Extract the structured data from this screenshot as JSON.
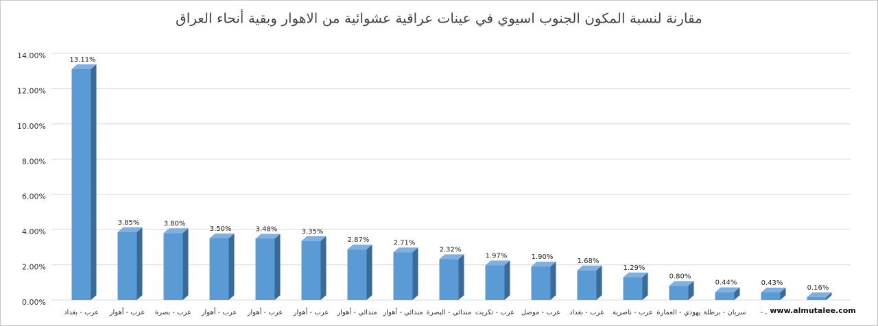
{
  "chart_data": {
    "type": "bar3d",
    "title": "مقارنة لنسبة المكون الجنوب اسيوي في عينات عراقية عشوائية من الاهوار وبقية أنحاء العراق",
    "categories": [
      "عرب - بغداد",
      "عرب - أهوار",
      "عرب - بصرة",
      "عرب - أهوار",
      "عرب - أهوار",
      "عرب - أهوار",
      "مندائي - أهوار",
      "مندائي - أهوار",
      "مندائي - البصرة",
      "عرب - تكريت",
      "عرب - موصل",
      "عرب - بغداد",
      "عرب - ناصرية",
      "يهودي - العمارة",
      "سريان - برطلة",
      "- دهوك",
      null
    ],
    "values": [
      13.11,
      3.85,
      3.8,
      3.5,
      3.48,
      3.35,
      2.87,
      2.71,
      2.32,
      1.97,
      1.9,
      1.68,
      1.29,
      0.8,
      0.44,
      0.43,
      0.16
    ],
    "value_labels": [
      "13.11%",
      "3.85%",
      "3.80%",
      "3.50%",
      "3.48%",
      "3.35%",
      "2.87%",
      "2.71%",
      "2.32%",
      "1.97%",
      "1.90%",
      "1.68%",
      "1.29%",
      "0.80%",
      "0.44%",
      "0.43%",
      "0.16%"
    ],
    "color": "#5b9bd5",
    "ylim": [
      0,
      14
    ],
    "yticks": [
      {
        "value": 0,
        "label": "0.00%"
      },
      {
        "value": 2,
        "label": "2.00%"
      },
      {
        "value": 4,
        "label": "4.00%"
      },
      {
        "value": 6,
        "label": "6.00%"
      },
      {
        "value": 8,
        "label": "8.00%"
      },
      {
        "value": 10,
        "label": "10.00%"
      },
      {
        "value": 12,
        "label": "12.00%"
      },
      {
        "value": 14,
        "label": "14.00%"
      }
    ],
    "grid": true,
    "watermark": "www.almutalee.com"
  }
}
